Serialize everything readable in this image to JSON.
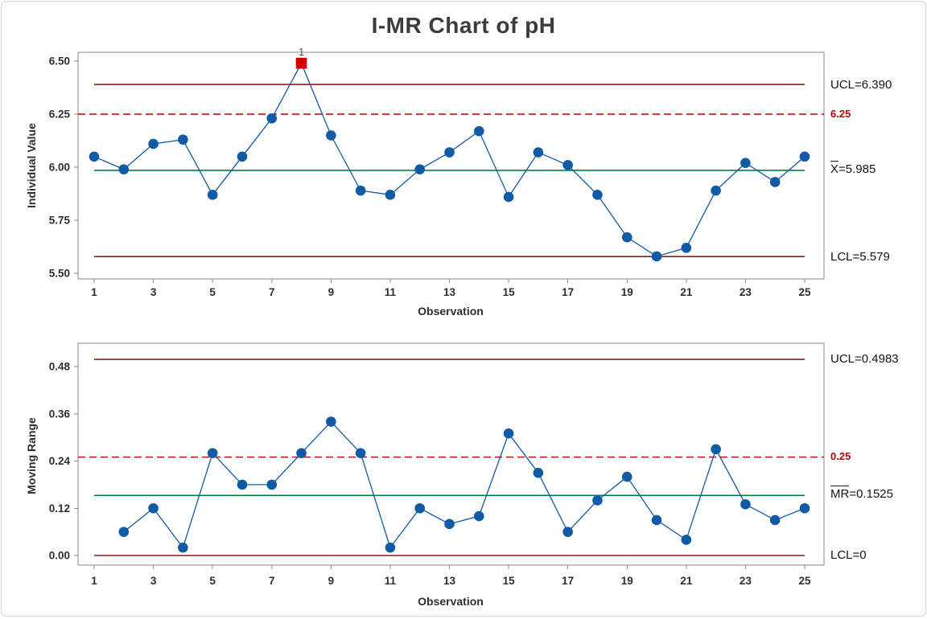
{
  "title": "I-MR Chart of pH",
  "colors": {
    "series_blue": "#115aa5",
    "center_green": "#008040",
    "limit_dark_red": "#8e1b1b",
    "spec_red": "#c00000",
    "ooc_red": "#d00000",
    "frame_gray": "#8a8a8a",
    "tick_text": "#2e2e2e",
    "ooc_label_text": "#4a4a4a"
  },
  "chart_data": [
    {
      "type": "line",
      "name": "individuals",
      "title": "I-MR Chart of pH",
      "xlabel": "Observation",
      "ylabel": "Individual Value",
      "x": [
        1,
        2,
        3,
        4,
        5,
        6,
        7,
        8,
        9,
        10,
        11,
        12,
        13,
        14,
        15,
        16,
        17,
        18,
        19,
        20,
        21,
        22,
        23,
        24,
        25
      ],
      "values": [
        6.05,
        5.99,
        6.11,
        6.13,
        5.87,
        6.05,
        6.23,
        6.49,
        6.15,
        5.89,
        5.87,
        5.99,
        6.07,
        6.17,
        5.86,
        6.07,
        6.01,
        5.87,
        5.67,
        5.58,
        5.62,
        5.89,
        6.02,
        5.93,
        6.05
      ],
      "ucl": 6.39,
      "center": 5.985,
      "lcl": 5.579,
      "reference_line": 6.25,
      "ylim": [
        5.45,
        6.55
      ],
      "ytick_labels": [
        "5.50",
        "5.75",
        "6.00",
        "6.25",
        "6.50"
      ],
      "xtick_labels": [
        "1",
        "3",
        "5",
        "7",
        "9",
        "11",
        "13",
        "15",
        "17",
        "19",
        "21",
        "23",
        "25"
      ],
      "legend_position": "right",
      "grid": false,
      "out_of_control_points": [
        {
          "x": 8,
          "value": 6.49,
          "label": "1"
        }
      ],
      "right_labels": {
        "ucl": "UCL=6.390",
        "spec": "6.25",
        "center_bar": "X",
        "center_rest": "=5.985",
        "lcl": "LCL=5.579"
      }
    },
    {
      "type": "line",
      "name": "moving_range",
      "title": "I-MR Chart of pH",
      "xlabel": "Observation",
      "ylabel": "Moving Range",
      "x": [
        1,
        2,
        3,
        4,
        5,
        6,
        7,
        8,
        9,
        10,
        11,
        12,
        13,
        14,
        15,
        16,
        17,
        18,
        19,
        20,
        21,
        22,
        23,
        24,
        25
      ],
      "values": [
        null,
        0.06,
        0.12,
        0.02,
        0.26,
        0.18,
        0.18,
        0.26,
        0.34,
        0.26,
        0.02,
        0.12,
        0.08,
        0.1,
        0.31,
        0.21,
        0.06,
        0.14,
        0.2,
        0.09,
        0.04,
        0.27,
        0.13,
        0.09,
        0.12
      ],
      "ucl": 0.4983,
      "center": 0.1525,
      "lcl": 0,
      "reference_line": 0.25,
      "ylim": [
        -0.03,
        0.54
      ],
      "ytick_labels": [
        "0.00",
        "0.12",
        "0.24",
        "0.36",
        "0.48"
      ],
      "xtick_labels": [
        "1",
        "3",
        "5",
        "7",
        "9",
        "11",
        "13",
        "15",
        "17",
        "19",
        "21",
        "23",
        "25"
      ],
      "legend_position": "right",
      "grid": false,
      "out_of_control_points": [],
      "right_labels": {
        "ucl": "UCL=0.4983",
        "spec": "0.25",
        "center_bar": "MR",
        "center_rest": "=0.1525",
        "lcl": "LCL=0"
      }
    }
  ]
}
